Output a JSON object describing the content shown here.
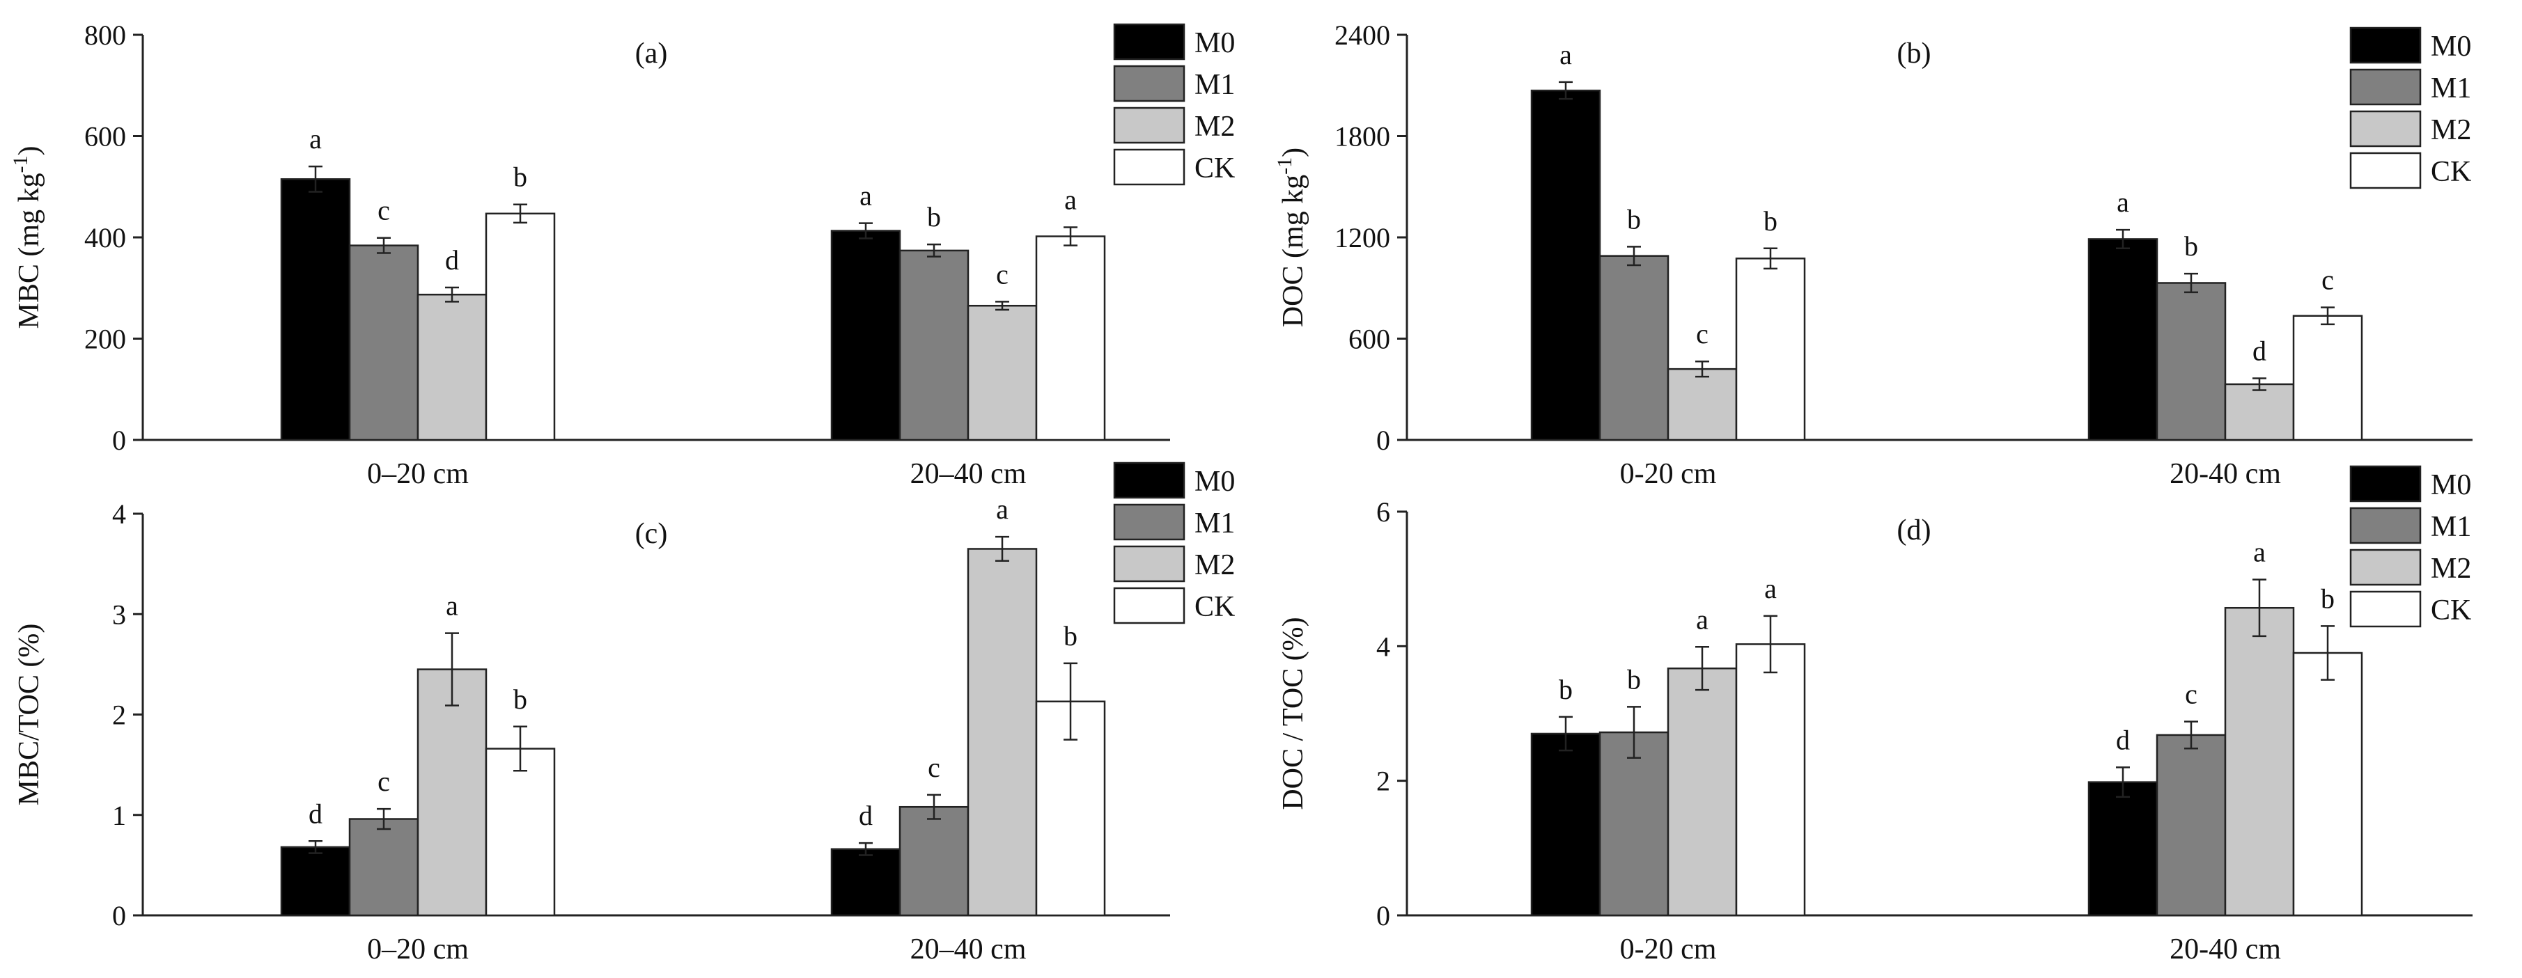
{
  "chart_data": [
    {
      "type": "bar",
      "panel": "(a)",
      "ylabel": "MBC (mg kg⁻¹)",
      "ylim": [
        0,
        800
      ],
      "yticks": [
        0,
        200,
        400,
        600,
        800
      ],
      "categories": [
        "0–20 cm",
        "20–40 cm"
      ],
      "series": [
        {
          "name": "M0",
          "color": "#000000",
          "values": [
            515,
            413
          ],
          "errors": [
            25,
            15
          ],
          "letters": [
            "a",
            "a"
          ]
        },
        {
          "name": "M1",
          "color": "#808080",
          "values": [
            384,
            374
          ],
          "errors": [
            15,
            12
          ],
          "letters": [
            "c",
            "b"
          ]
        },
        {
          "name": "M2",
          "color": "#c8c8c8",
          "values": [
            287,
            265
          ],
          "errors": [
            14,
            8
          ],
          "letters": [
            "d",
            "c"
          ]
        },
        {
          "name": "CK",
          "color": "#ffffff",
          "values": [
            447,
            402
          ],
          "errors": [
            18,
            18
          ],
          "letters": [
            "b",
            "a"
          ]
        }
      ],
      "legend": [
        "M0",
        "M1",
        "M2",
        "CK"
      ],
      "legend_position": "top-right"
    },
    {
      "type": "bar",
      "panel": "(b)",
      "ylabel": "DOC (mg kg⁻¹)",
      "ylim": [
        0,
        2400
      ],
      "yticks": [
        0,
        600,
        1200,
        1800,
        2400
      ],
      "categories": [
        "0-20 cm",
        "20-40 cm"
      ],
      "series": [
        {
          "name": "M0",
          "color": "#000000",
          "values": [
            2070,
            1190
          ],
          "errors": [
            50,
            55
          ],
          "letters": [
            "a",
            "a"
          ]
        },
        {
          "name": "M1",
          "color": "#808080",
          "values": [
            1090,
            930
          ],
          "errors": [
            55,
            55
          ],
          "letters": [
            "b",
            "b"
          ]
        },
        {
          "name": "M2",
          "color": "#c8c8c8",
          "values": [
            420,
            330
          ],
          "errors": [
            45,
            35
          ],
          "letters": [
            "c",
            "d"
          ]
        },
        {
          "name": "CK",
          "color": "#ffffff",
          "values": [
            1075,
            735
          ],
          "errors": [
            60,
            50
          ],
          "letters": [
            "b",
            "c"
          ]
        }
      ],
      "legend": [
        "M0",
        "M1",
        "M2",
        "CK"
      ],
      "legend_position": "top-right"
    },
    {
      "type": "bar",
      "panel": "(c)",
      "ylabel": "MBC/TOC (%)",
      "ylim": [
        0,
        4
      ],
      "yticks": [
        0,
        1,
        2,
        3,
        4
      ],
      "categories": [
        "0–20 cm",
        "20–40 cm"
      ],
      "series": [
        {
          "name": "M0",
          "color": "#000000",
          "values": [
            0.68,
            0.66
          ],
          "errors": [
            0.06,
            0.06
          ],
          "letters": [
            "d",
            "d"
          ]
        },
        {
          "name": "M1",
          "color": "#808080",
          "values": [
            0.96,
            1.08
          ],
          "errors": [
            0.1,
            0.12
          ],
          "letters": [
            "c",
            "c"
          ]
        },
        {
          "name": "M2",
          "color": "#c8c8c8",
          "values": [
            2.45,
            3.65
          ],
          "errors": [
            0.36,
            0.12
          ],
          "letters": [
            "a",
            "a"
          ]
        },
        {
          "name": "CK",
          "color": "#ffffff",
          "values": [
            1.66,
            2.13
          ],
          "errors": [
            0.22,
            0.38
          ],
          "letters": [
            "b",
            "b"
          ]
        }
      ],
      "legend": [
        "M0",
        "M1",
        "M2",
        "CK"
      ],
      "legend_position": "top-right"
    },
    {
      "type": "bar",
      "panel": "(d)",
      "ylabel": "DOC / TOC (%)",
      "ylim": [
        0,
        6
      ],
      "yticks": [
        0,
        2,
        4,
        6
      ],
      "categories": [
        "0-20 cm",
        "20-40 cm"
      ],
      "series": [
        {
          "name": "M0",
          "color": "#000000",
          "values": [
            2.7,
            1.98
          ],
          "errors": [
            0.25,
            0.22
          ],
          "letters": [
            "b",
            "d"
          ]
        },
        {
          "name": "M1",
          "color": "#808080",
          "values": [
            2.72,
            2.68
          ],
          "errors": [
            0.38,
            0.2
          ],
          "letters": [
            "b",
            "c"
          ]
        },
        {
          "name": "M2",
          "color": "#c8c8c8",
          "values": [
            3.67,
            4.57
          ],
          "errors": [
            0.32,
            0.42
          ],
          "letters": [
            "a",
            "a"
          ]
        },
        {
          "name": "CK",
          "color": "#ffffff",
          "values": [
            4.03,
            3.9
          ],
          "errors": [
            0.42,
            0.4
          ],
          "letters": [
            "a",
            "b"
          ]
        }
      ],
      "legend": [
        "M0",
        "M1",
        "M2",
        "CK"
      ],
      "legend_position": "top-right"
    }
  ]
}
